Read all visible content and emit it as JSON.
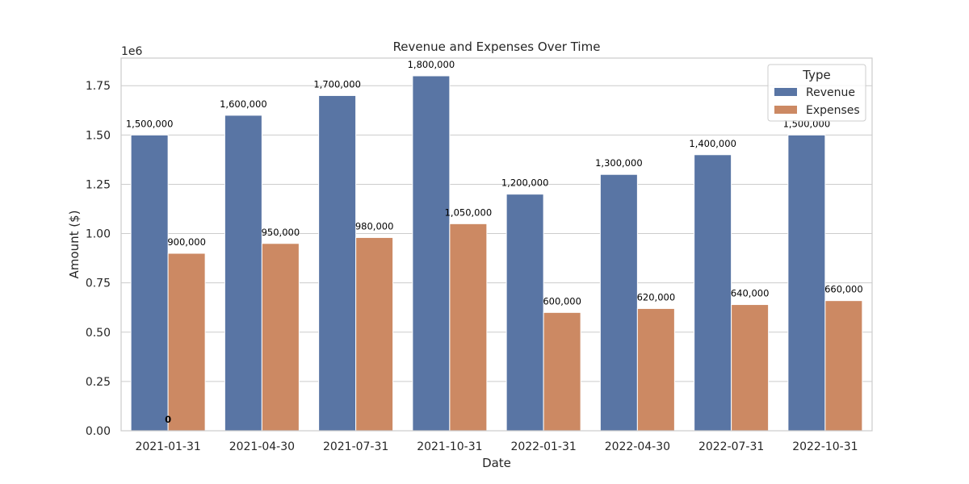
{
  "chart_data": {
    "type": "bar",
    "title": "Revenue and Expenses Over Time",
    "xlabel": "Date",
    "ylabel": "Amount ($)",
    "y_scale_label": "1e6",
    "ylim": [
      0,
      1890000
    ],
    "yticks": [
      0,
      250000,
      500000,
      750000,
      1000000,
      1250000,
      1500000,
      1750000
    ],
    "ytick_labels": [
      "0.00",
      "0.25",
      "0.50",
      "0.75",
      "1.00",
      "1.25",
      "1.50",
      "1.75"
    ],
    "grid": true,
    "legend": {
      "title": "Type",
      "placement": "top-right"
    },
    "categories": [
      "2021-01-31",
      "2021-04-30",
      "2021-07-31",
      "2021-10-31",
      "2022-01-31",
      "2022-04-30",
      "2022-07-31",
      "2022-10-31"
    ],
    "series": [
      {
        "name": "Revenue",
        "color": "#5975a4",
        "values": [
          1500000,
          1600000,
          1700000,
          1800000,
          1200000,
          1300000,
          1400000,
          1500000
        ],
        "labels": [
          "1,500,000",
          "1,600,000",
          "1,700,000",
          "1,800,000",
          "1,200,000",
          "1,300,000",
          "1,400,000",
          "1,500,000"
        ]
      },
      {
        "name": "Expenses",
        "color": "#cc8963",
        "values": [
          900000,
          950000,
          980000,
          1050000,
          600000,
          620000,
          640000,
          660000
        ],
        "labels": [
          "900,000",
          "950,000",
          "980,000",
          "1,050,000",
          "600,000",
          "620,000",
          "640,000",
          "660,000"
        ]
      }
    ],
    "annotations": [
      {
        "text": "0",
        "x": "2021-01-31",
        "y": 0
      }
    ]
  }
}
